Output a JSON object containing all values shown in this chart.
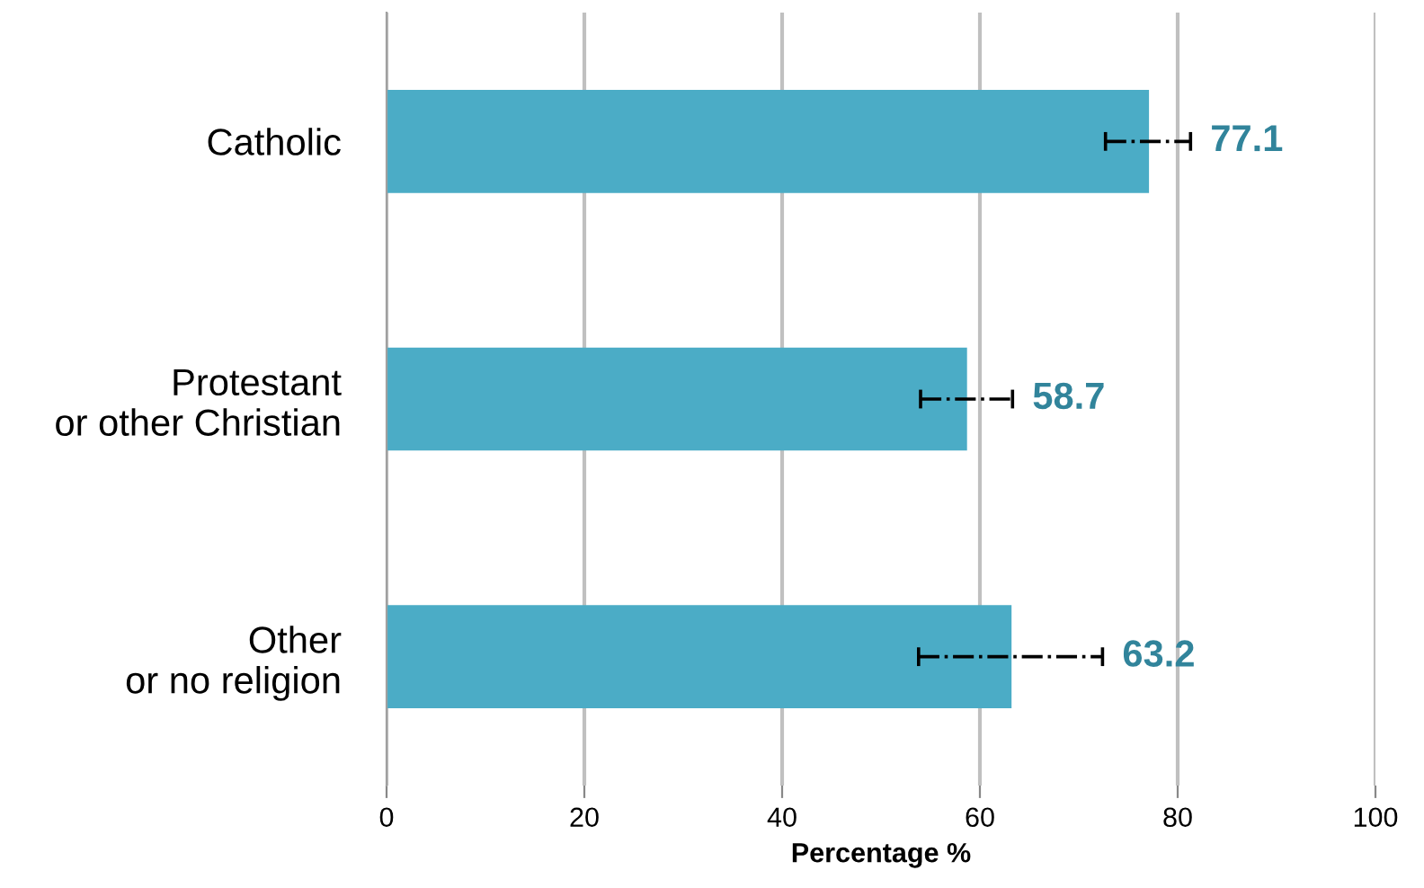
{
  "chart_data": {
    "type": "bar",
    "orientation": "horizontal",
    "xlabel": "Percentage %",
    "categories": [
      "Catholic",
      "Protestant\nor other Christian",
      "Other\nor no religion"
    ],
    "values": [
      77.1,
      58.7,
      63.2
    ],
    "errors": [
      [
        72.7,
        81.3
      ],
      [
        54.0,
        63.3
      ],
      [
        53.8,
        72.4
      ]
    ],
    "color": "#4bacc6",
    "xlim": [
      0,
      100
    ],
    "xticks": [
      0,
      20,
      40,
      60,
      80,
      100
    ],
    "grid": "x",
    "data_labels": true
  }
}
